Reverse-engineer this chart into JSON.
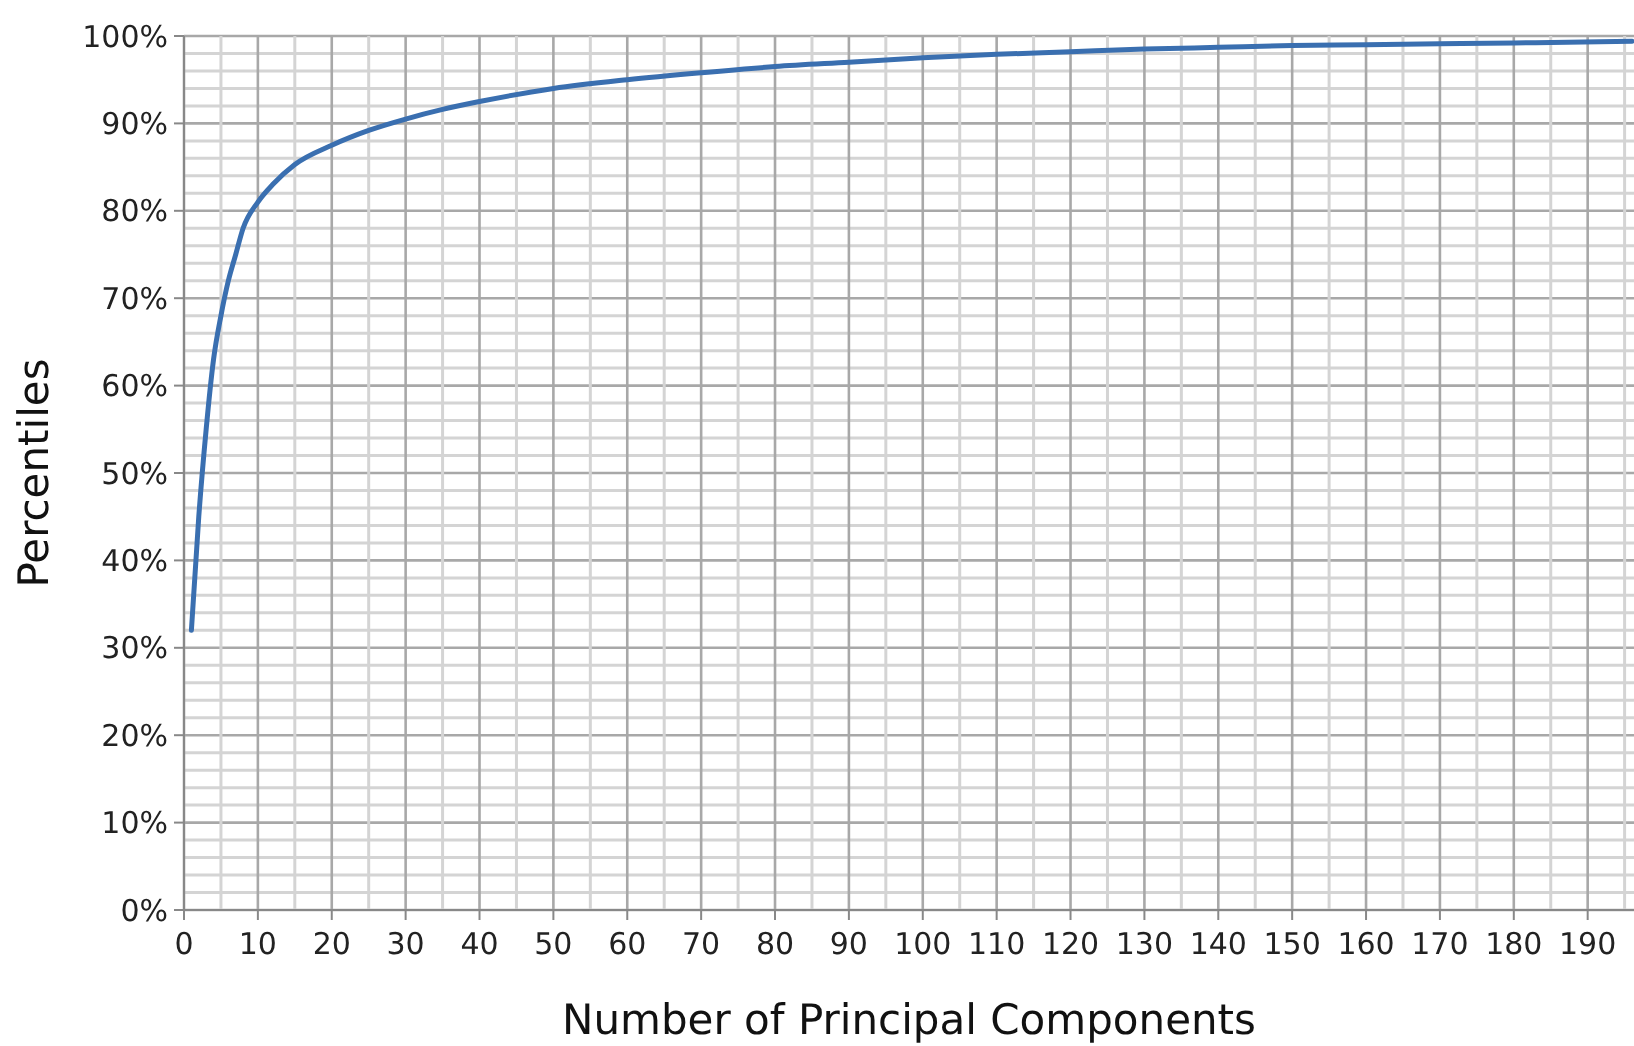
{
  "chart_data": {
    "type": "line",
    "xlabel": "Number of Principal Components",
    "ylabel": "Percentiles",
    "xlim": [
      0,
      196
    ],
    "ylim": [
      0,
      100
    ],
    "xticks": [
      0,
      {
        "value": 5,
        "label": null
      },
      10,
      {
        "value": 15,
        "label": null
      },
      20,
      {
        "value": 25,
        "label": null
      },
      30,
      {
        "value": 35,
        "label": null
      },
      40,
      {
        "value": 45,
        "label": null
      },
      50,
      {
        "value": 55,
        "label": null
      },
      60,
      {
        "value": 65,
        "label": null
      },
      70,
      {
        "value": 75,
        "label": null
      },
      80,
      {
        "value": 85,
        "label": null
      },
      90,
      {
        "value": 95,
        "label": null
      },
      100,
      {
        "value": 105,
        "label": null
      },
      110,
      {
        "value": 115,
        "label": null
      },
      120,
      {
        "value": 125,
        "label": null
      },
      130,
      {
        "value": 135,
        "label": null
      },
      140,
      {
        "value": 145,
        "label": null
      },
      150,
      {
        "value": 155,
        "label": null
      },
      160,
      {
        "value": 165,
        "label": null
      },
      170,
      {
        "value": 175,
        "label": null
      },
      180,
      {
        "value": 185,
        "label": null
      },
      190,
      {
        "value": 195,
        "label": null
      }
    ],
    "yticks": [
      {
        "value": 0,
        "label": "0%"
      },
      {
        "value": 2,
        "label": null
      },
      {
        "value": 4,
        "label": null
      },
      {
        "value": 6,
        "label": null
      },
      {
        "value": 8,
        "label": null
      },
      {
        "value": 10,
        "label": "10%"
      },
      {
        "value": 12,
        "label": null
      },
      {
        "value": 14,
        "label": null
      },
      {
        "value": 16,
        "label": null
      },
      {
        "value": 18,
        "label": null
      },
      {
        "value": 20,
        "label": "20%"
      },
      {
        "value": 22,
        "label": null
      },
      {
        "value": 24,
        "label": null
      },
      {
        "value": 26,
        "label": null
      },
      {
        "value": 28,
        "label": null
      },
      {
        "value": 30,
        "label": "30%"
      },
      {
        "value": 32,
        "label": null
      },
      {
        "value": 34,
        "label": null
      },
      {
        "value": 36,
        "label": null
      },
      {
        "value": 38,
        "label": null
      },
      {
        "value": 40,
        "label": "40%"
      },
      {
        "value": 42,
        "label": null
      },
      {
        "value": 44,
        "label": null
      },
      {
        "value": 46,
        "label": null
      },
      {
        "value": 48,
        "label": null
      },
      {
        "value": 50,
        "label": "50%"
      },
      {
        "value": 52,
        "label": null
      },
      {
        "value": 54,
        "label": null
      },
      {
        "value": 56,
        "label": null
      },
      {
        "value": 58,
        "label": null
      },
      {
        "value": 60,
        "label": "60%"
      },
      {
        "value": 62,
        "label": null
      },
      {
        "value": 64,
        "label": null
      },
      {
        "value": 66,
        "label": null
      },
      {
        "value": 68,
        "label": null
      },
      {
        "value": 70,
        "label": "70%"
      },
      {
        "value": 72,
        "label": null
      },
      {
        "value": 74,
        "label": null
      },
      {
        "value": 76,
        "label": null
      },
      {
        "value": 78,
        "label": null
      },
      {
        "value": 80,
        "label": "80%"
      },
      {
        "value": 82,
        "label": null
      },
      {
        "value": 84,
        "label": null
      },
      {
        "value": 86,
        "label": null
      },
      {
        "value": 88,
        "label": null
      },
      {
        "value": 90,
        "label": "90%"
      },
      {
        "value": 92,
        "label": null
      },
      {
        "value": 94,
        "label": null
      },
      {
        "value": 96,
        "label": null
      },
      {
        "value": 98,
        "label": null
      },
      {
        "value": 100,
        "label": "100%"
      }
    ],
    "grid": true,
    "marker": "none",
    "line_style": "solid",
    "series": [
      {
        "color": "#3a6fb0",
        "x": [
          1,
          2,
          3,
          4,
          5,
          6,
          7,
          8,
          10,
          12,
          15,
          20,
          25,
          30,
          35,
          40,
          50,
          60,
          70,
          80,
          90,
          100,
          110,
          120,
          130,
          140,
          150,
          160,
          170,
          180,
          196
        ],
        "values": [
          32,
          45,
          55,
          63,
          68,
          72,
          75,
          78,
          81,
          83,
          85.3,
          87.5,
          89.2,
          90.5,
          91.6,
          92.5,
          94,
          95,
          95.8,
          96.5,
          97,
          97.5,
          97.9,
          98.2,
          98.5,
          98.7,
          98.9,
          99,
          99.1,
          99.2,
          99.4
        ]
      }
    ]
  }
}
